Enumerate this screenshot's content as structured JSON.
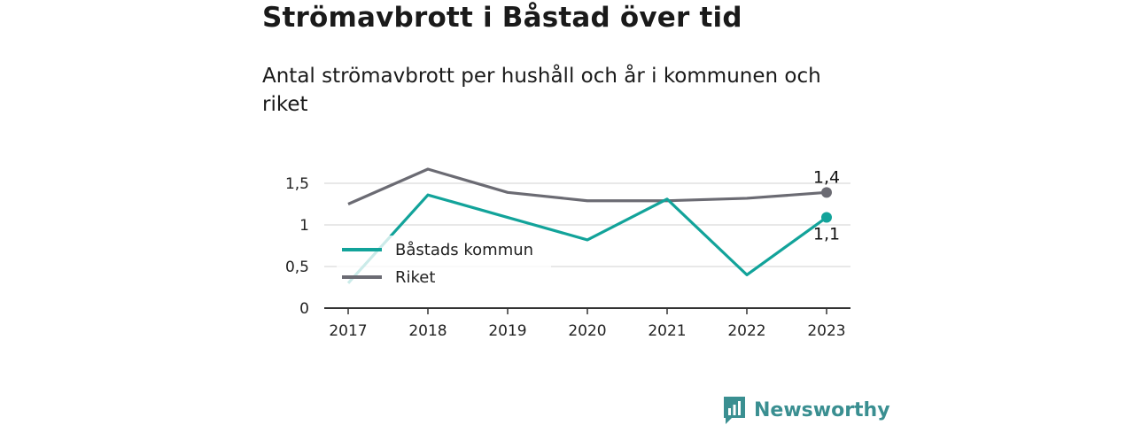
{
  "title": "Strömavbrott i Båstad över tid",
  "subtitle": "Antal strömavbrott per hushåll och år i kommunen och riket",
  "brand": {
    "name": "Newsworthy"
  },
  "colors": {
    "kommun": "#12a39a",
    "riket": "#6b6b73",
    "grid": "#d9d9d9",
    "axis": "#333333",
    "brand": "#3a8f91"
  },
  "chart_data": {
    "type": "line",
    "categories": [
      "2017",
      "2018",
      "2019",
      "2020",
      "2021",
      "2022",
      "2023"
    ],
    "yticks": [
      "0",
      "0,5",
      "1",
      "1,5"
    ],
    "ylim": [
      0,
      1.75
    ],
    "grid": true,
    "legend_position": "bottom-left",
    "series": [
      {
        "name": "Båstads kommun",
        "values": [
          0.3,
          1.36,
          1.09,
          0.82,
          1.31,
          0.4,
          1.09
        ],
        "end_label": "1,1"
      },
      {
        "name": "Riket",
        "values": [
          1.25,
          1.67,
          1.39,
          1.29,
          1.29,
          1.32,
          1.39
        ],
        "end_label": "1,4"
      }
    ]
  }
}
